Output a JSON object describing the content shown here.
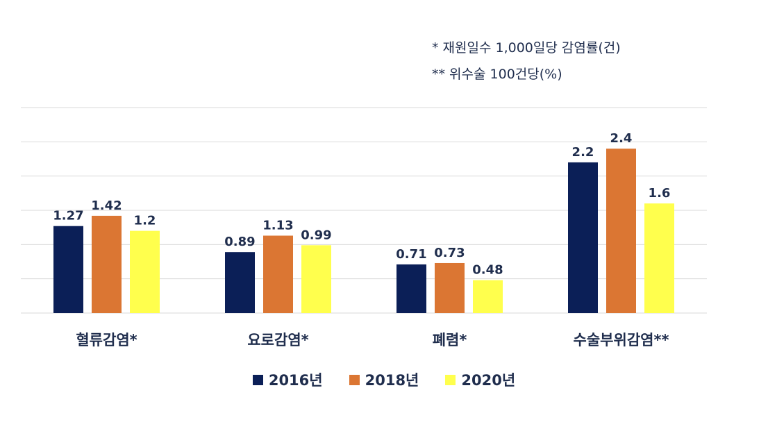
{
  "notes": [
    "* 재원일수 1,000일당 감염률(건)",
    "** 위수술 100건당(%)"
  ],
  "colors": {
    "series": [
      "#0b1f57",
      "#db7633",
      "#ffff4d"
    ],
    "text": "#1f2d4d",
    "grid": "#d9d9d9"
  },
  "chart_data": {
    "type": "bar",
    "categories": [
      "혈류감염*",
      "요로감염*",
      "폐렴*",
      "수술부위감염**"
    ],
    "series": [
      {
        "name": "2016년",
        "values": [
          1.27,
          0.89,
          0.71,
          2.2
        ],
        "labels": [
          "1.27",
          "0.89",
          "0.71",
          "2.2"
        ]
      },
      {
        "name": "2018년",
        "values": [
          1.42,
          1.13,
          0.73,
          2.4
        ],
        "labels": [
          "1.42",
          "1.13",
          "0.73",
          "2.4"
        ]
      },
      {
        "name": "2020년",
        "values": [
          1.2,
          0.99,
          0.48,
          1.6
        ],
        "labels": [
          "1.2",
          "0.99",
          "0.48",
          "1.6"
        ]
      }
    ],
    "ylim": [
      0,
      3
    ],
    "grid": true,
    "legend": "bottom"
  }
}
